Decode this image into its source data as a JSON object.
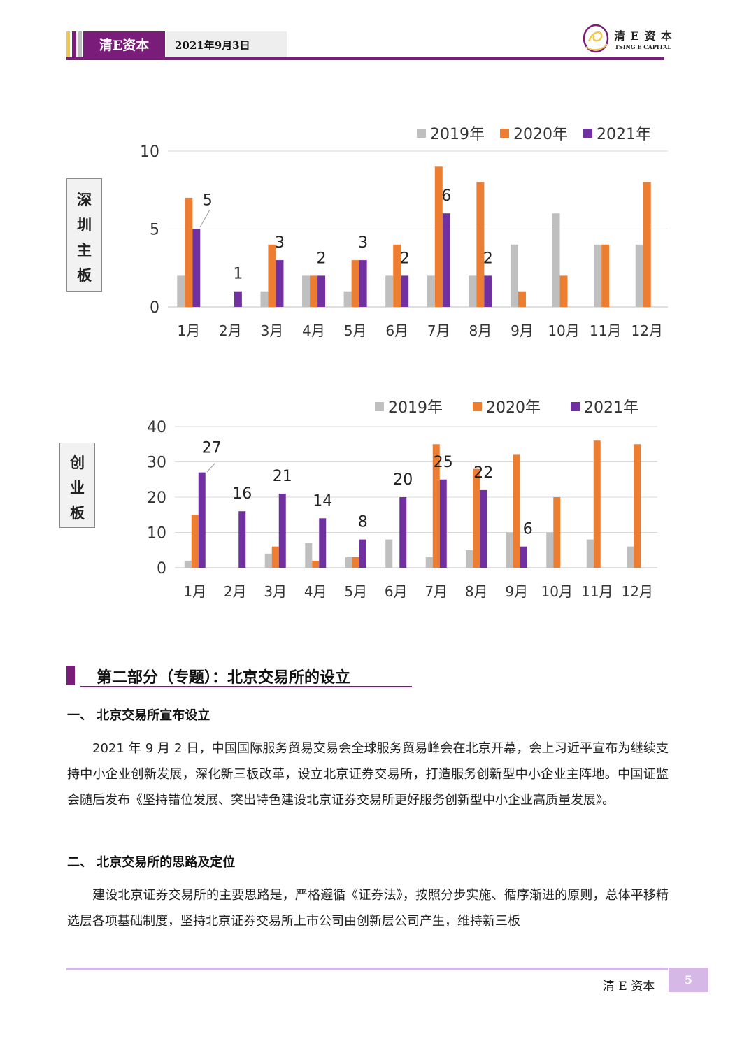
{
  "header": {
    "brand": "清E资本",
    "date": "2021年9月3日",
    "logo_cn": "清 E 资 本",
    "logo_en": "TSING E CAPITAL"
  },
  "colors": {
    "purple": "#7030a0",
    "orange": "#ed7d31",
    "gray": "#bfbfbf",
    "brand": "#7a1d7a"
  },
  "chart_data": [
    {
      "type": "bar",
      "side_label": "深圳主板",
      "categories": [
        "1月",
        "2月",
        "3月",
        "4月",
        "5月",
        "6月",
        "7月",
        "8月",
        "9月",
        "10月",
        "11月",
        "12月"
      ],
      "series": [
        {
          "name": "2019年",
          "values": [
            2,
            0,
            1,
            2,
            1,
            2,
            2,
            2,
            4,
            6,
            4,
            4
          ]
        },
        {
          "name": "2020年",
          "values": [
            7,
            0,
            4,
            2,
            3,
            4,
            9,
            8,
            1,
            2,
            4,
            8
          ]
        },
        {
          "name": "2021年",
          "values": [
            5,
            1,
            3,
            2,
            3,
            2,
            6,
            2,
            null,
            null,
            null,
            null
          ]
        }
      ],
      "ylim": [
        0,
        10
      ],
      "yticks": [
        0,
        5,
        10
      ],
      "data_labels_series": "2021年",
      "legend": "top-right",
      "grid": true
    },
    {
      "type": "bar",
      "side_label": "创业板",
      "categories": [
        "1月",
        "2月",
        "3月",
        "4月",
        "5月",
        "6月",
        "7月",
        "8月",
        "9月",
        "10月",
        "11月",
        "12月"
      ],
      "series": [
        {
          "name": "2019年",
          "values": [
            2,
            0,
            4,
            7,
            3,
            8,
            3,
            5,
            10,
            10,
            8,
            6
          ]
        },
        {
          "name": "2020年",
          "values": [
            15,
            0,
            6,
            2,
            3,
            0,
            35,
            28,
            32,
            20,
            36,
            35
          ]
        },
        {
          "name": "2021年",
          "values": [
            27,
            16,
            21,
            14,
            8,
            20,
            25,
            22,
            6,
            null,
            null,
            null
          ]
        }
      ],
      "ylim": [
        0,
        40
      ],
      "yticks": [
        0,
        10,
        20,
        30,
        40
      ],
      "data_labels_series": "2021年",
      "legend": "top-right",
      "grid": true
    }
  ],
  "section": {
    "title": "第二部分（专题）：北京交易所的设立"
  },
  "sub1": "一、 北京交易所宣布设立",
  "para1": "2021 年 9 月 2 日，中国国际服务贸易交易会全球服务贸易峰会在北京开幕，会上习近平宣布为继续支持中小企业创新发展，深化新三板改革，设立北京证券交易所，打造服务创新型中小企业主阵地。中国证监会随后发布《坚持错位发展、突出特色建设北京证券交易所更好服务创新型中小企业高质量发展》。",
  "sub2": "二、 北京交易所的思路及定位",
  "para2": "建设北京证券交易所的主要思路是，严格遵循《证券法》，按照分步实施、循序渐进的原则，总体平移精选层各项基础制度，坚持北京证券交易所上市公司由创新层公司产生，维持新三板",
  "footer": {
    "brand": "清 E 资本",
    "page": "5"
  }
}
